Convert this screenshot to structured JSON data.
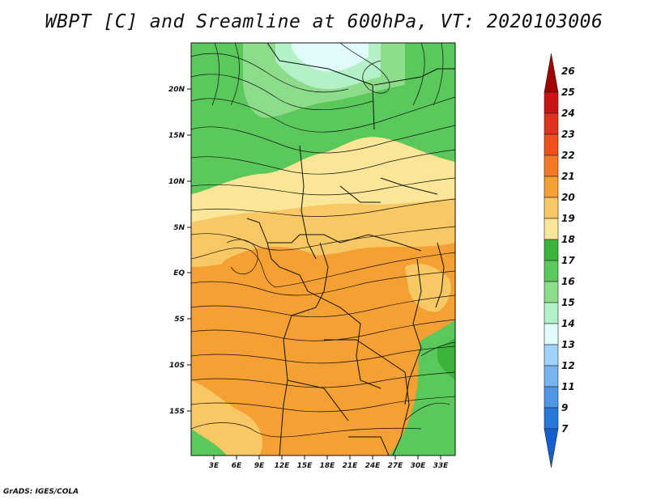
{
  "title": "WBPT [C] and Sreamline at 600hPa, VT: 2020103006",
  "footer": "GrADS: IGES/COLA",
  "map": {
    "lat_labels": [
      "20N",
      "15N",
      "10N",
      "5N",
      "EQ",
      "5S",
      "10S",
      "15S"
    ],
    "lon_labels": [
      "3E",
      "6E",
      "9E",
      "12E",
      "15E",
      "18E",
      "21E",
      "24E",
      "27E",
      "30E",
      "33E"
    ]
  },
  "colorbar": {
    "labels": [
      "26",
      "25",
      "24",
      "23",
      "22",
      "21",
      "20",
      "19",
      "18",
      "17",
      "16",
      "15",
      "14",
      "13",
      "12",
      "11",
      "9",
      "7"
    ],
    "colors": [
      "#a00000",
      "#c81414",
      "#e0321e",
      "#f0501e",
      "#f57828",
      "#f5a032",
      "#f7c864",
      "#fae696",
      "#3cb43c",
      "#5ac85a",
      "#8cdc8c",
      "#b4f0c8",
      "#e1fafa",
      "#a0d2fa",
      "#78b4f0",
      "#5096e6",
      "#2878dc",
      "#1460d2"
    ]
  }
}
